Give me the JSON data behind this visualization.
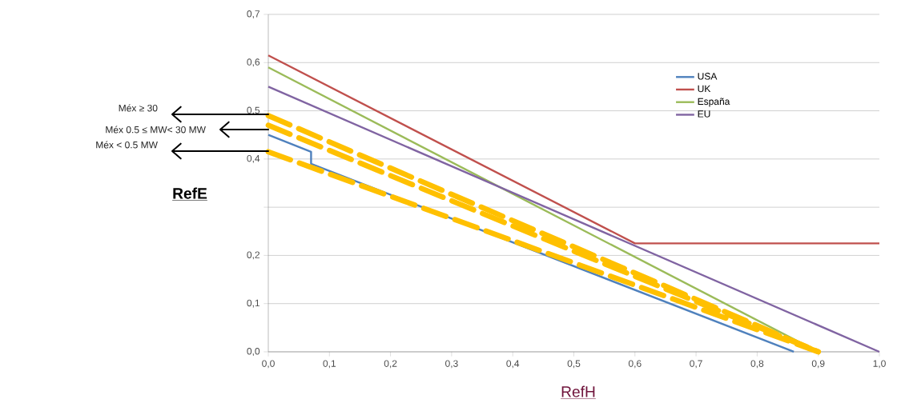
{
  "chart_data": {
    "type": "line",
    "xlabel": "RefH",
    "ylabel": "RefE",
    "xlim": [
      0,
      1.0
    ],
    "ylim": [
      0,
      0.7
    ],
    "xticks": [
      {
        "value": 0,
        "label": "0,0"
      },
      {
        "value": 0.1,
        "label": "0,1"
      },
      {
        "value": 0.2,
        "label": "0,2"
      },
      {
        "value": 0.3,
        "label": "0,3"
      },
      {
        "value": 0.4,
        "label": "0,4"
      },
      {
        "value": 0.5,
        "label": "0,5"
      },
      {
        "value": 0.6,
        "label": "0,6"
      },
      {
        "value": 0.7,
        "label": "0,7"
      },
      {
        "value": 0.8,
        "label": "0,8"
      },
      {
        "value": 0.9,
        "label": "0,9"
      },
      {
        "value": 1.0,
        "label": "1,0"
      }
    ],
    "yticks": [
      {
        "value": 0,
        "label": "0,0"
      },
      {
        "value": 0.1,
        "label": "0,1"
      },
      {
        "value": 0.2,
        "label": "0,2"
      },
      {
        "value": 0.3,
        "label": null
      },
      {
        "value": 0.4,
        "label": "0,4"
      },
      {
        "value": 0.5,
        "label": "0,5"
      },
      {
        "value": 0.6,
        "label": "0,6"
      },
      {
        "value": 0.7,
        "label": "0,7"
      }
    ],
    "grid": "y",
    "legend": "top right",
    "marker": "none",
    "series": [
      {
        "name": "USA",
        "color": "#4f81bd",
        "line_style": "solid",
        "x": [
          0,
          0.07,
          0.07,
          0.86
        ],
        "values": [
          0.45,
          0.415,
          0.39,
          0
        ]
      },
      {
        "name": "UK",
        "color": "#c0504d",
        "line_style": "solid",
        "x": [
          0,
          0.6,
          1.0
        ],
        "values": [
          0.615,
          0.225,
          0.225
        ]
      },
      {
        "name": "España",
        "color": "#9bbb59",
        "line_style": "solid",
        "x": [
          0,
          0.9
        ],
        "values": [
          0.59,
          0
        ]
      },
      {
        "name": "EU",
        "color": "#8064a2",
        "line_style": "solid",
        "x": [
          0,
          1.0
        ],
        "values": [
          0.55,
          0
        ]
      },
      {
        "color": "#ffc000",
        "line_style": "dashed",
        "x": [
          0,
          0.9
        ],
        "values": [
          0.49,
          0
        ]
      },
      {
        "color": "#ffc000",
        "line_style": "dashed",
        "x": [
          0,
          0.9
        ],
        "values": [
          0.47,
          0
        ]
      },
      {
        "color": "#ffc000",
        "line_style": "dashed",
        "x": [
          0,
          0.9
        ],
        "values": [
          0.415,
          0
        ]
      }
    ],
    "annotations": [
      "Méx ≥ 30",
      "Méx 0.5 ≤ MW< 30 MW",
      "Méx < 0.5 MW"
    ]
  }
}
